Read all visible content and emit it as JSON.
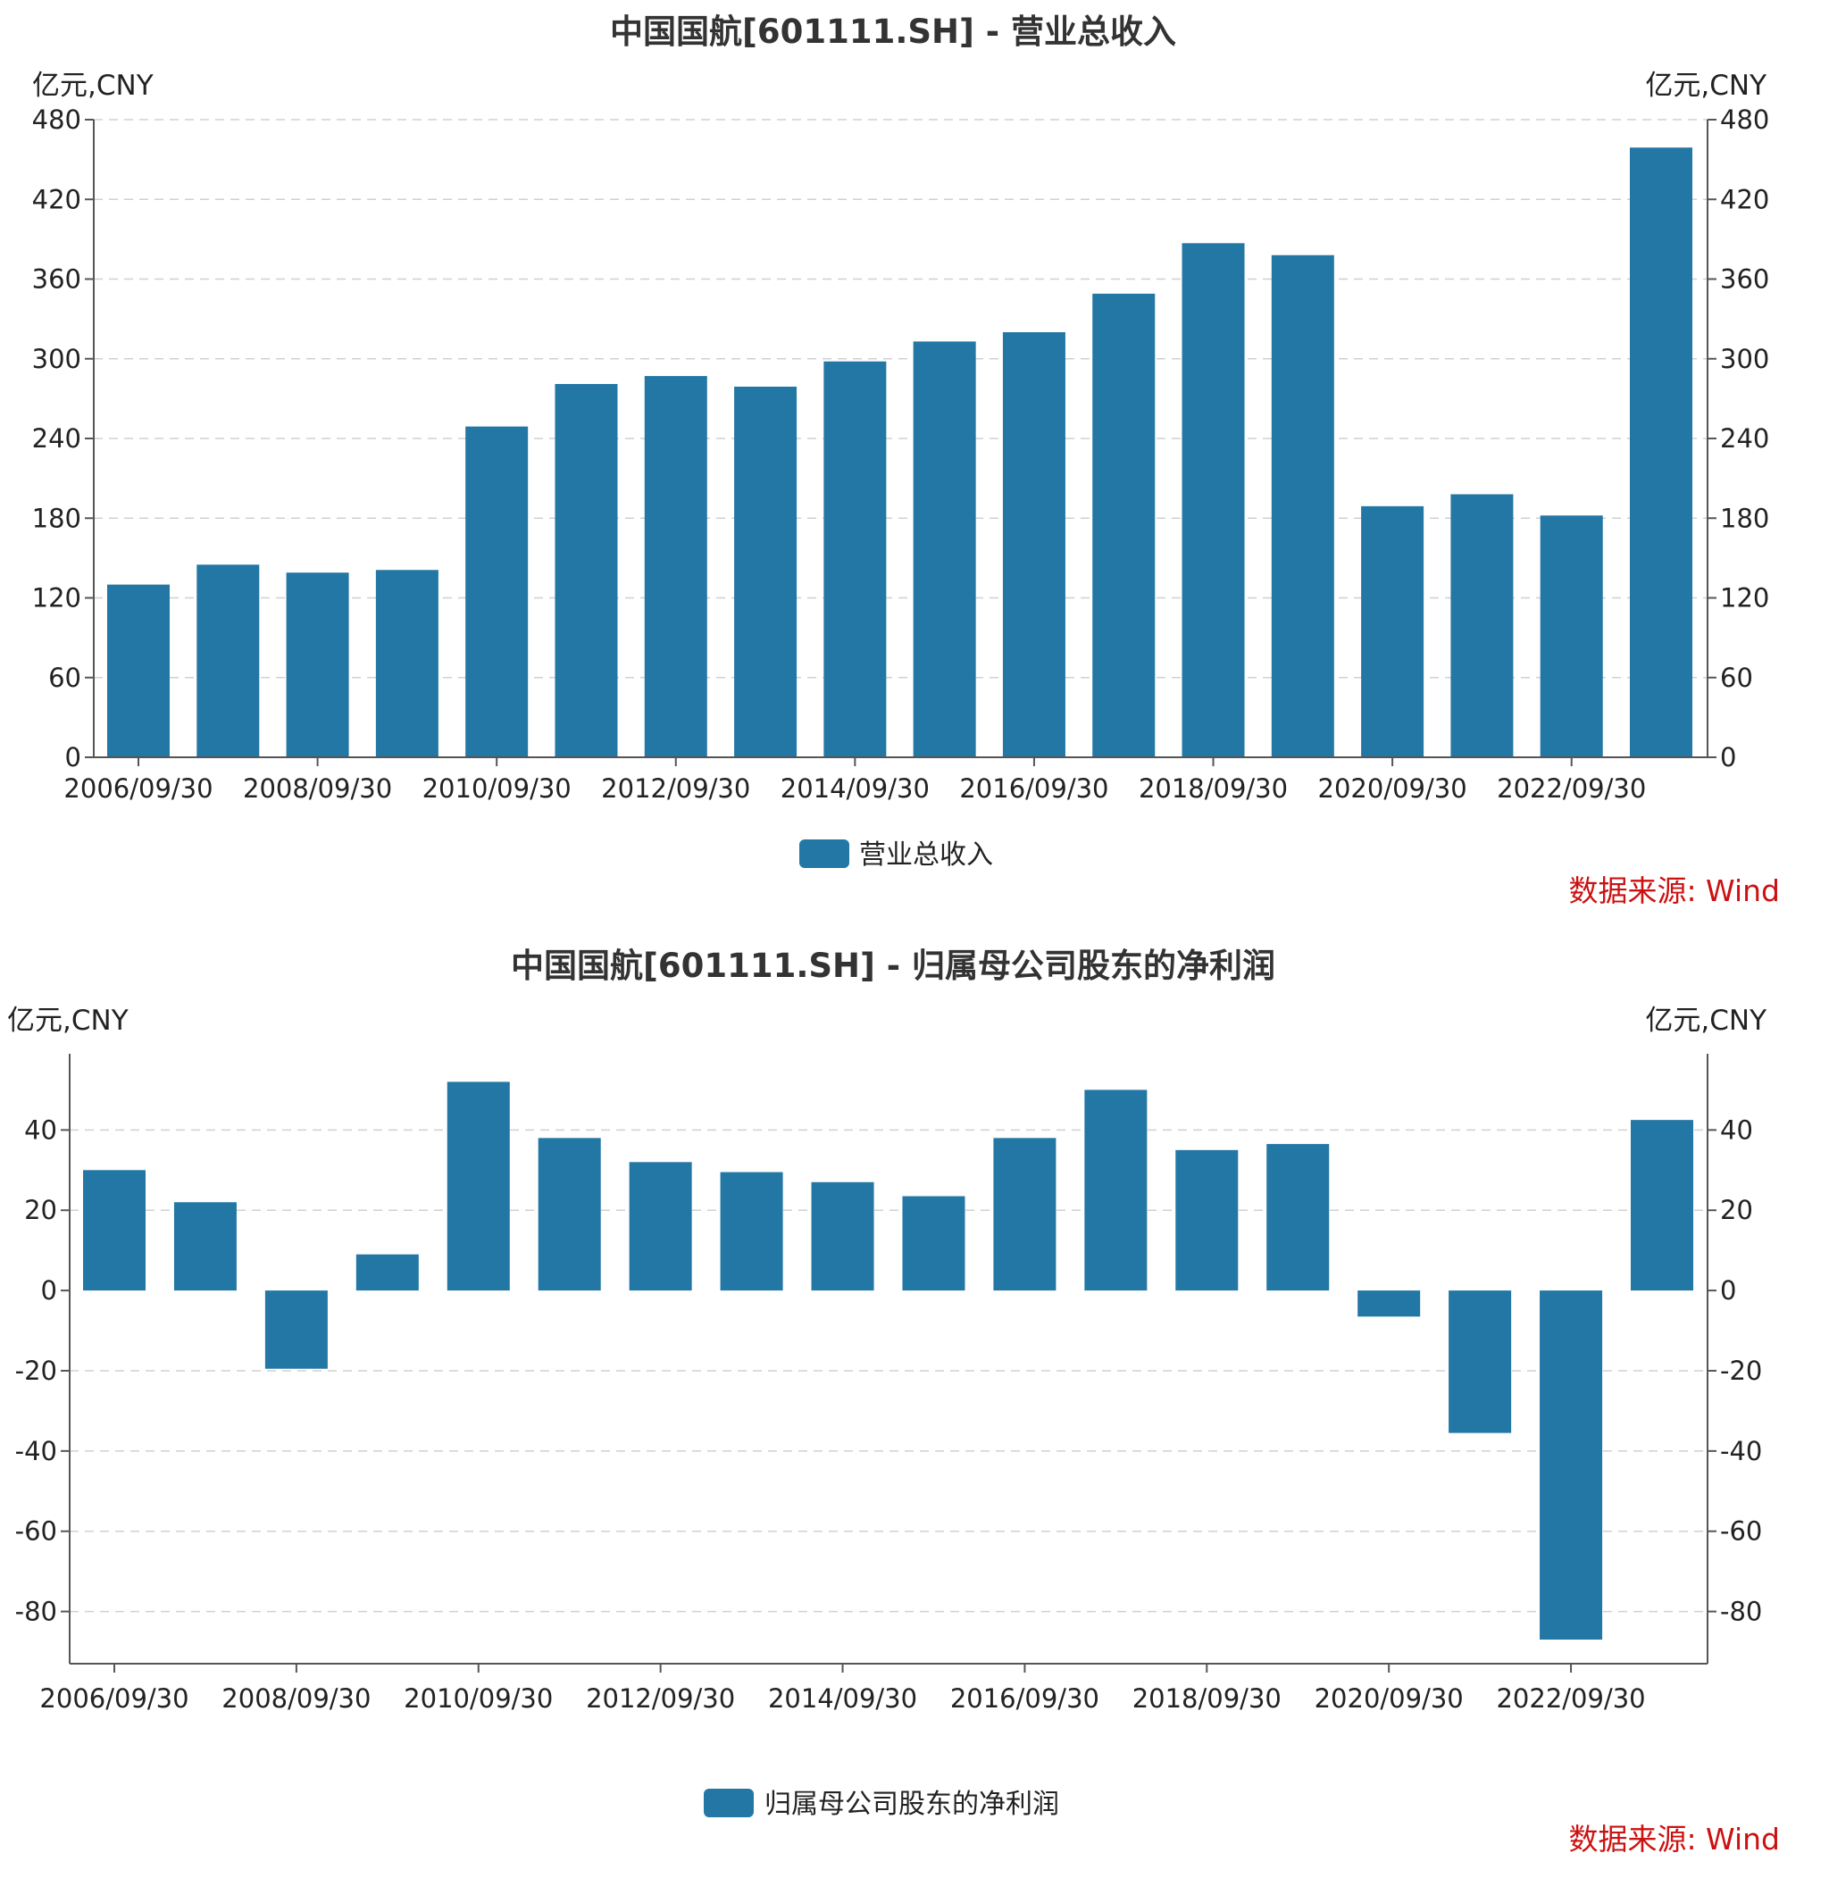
{
  "colors": {
    "bar": "#2377a4",
    "axis": "#555555",
    "grid": "#d0d0d0",
    "source": "#cc1111",
    "title": "#333333"
  },
  "chart_data": [
    {
      "type": "bar",
      "title": "中国国航[601111.SH] - 营业总收入",
      "unit_left": "亿元,CNY",
      "unit_right": "亿元,CNY",
      "legend": "营业总收入",
      "source": "数据来源: Wind",
      "ylim": [
        0,
        480
      ],
      "yticks": [
        0,
        60,
        120,
        180,
        240,
        300,
        360,
        420,
        480
      ],
      "grid": true,
      "categories": [
        "2006/09/30",
        "2007/09/30",
        "2008/09/30",
        "2009/09/30",
        "2010/09/30",
        "2011/09/30",
        "2012/09/30",
        "2013/09/30",
        "2014/09/30",
        "2015/09/30",
        "2016/09/30",
        "2017/09/30",
        "2018/09/30",
        "2019/09/30",
        "2020/09/30",
        "2021/09/30",
        "2022/09/30",
        "2023/09/30"
      ],
      "tick_labels": [
        "2006/09/30",
        "",
        "2008/09/30",
        "",
        "2010/09/30",
        "",
        "2012/09/30",
        "",
        "2014/09/30",
        "",
        "2016/09/30",
        "",
        "2018/09/30",
        "",
        "2020/09/30",
        "",
        "2022/09/30",
        ""
      ],
      "series": [
        {
          "name": "营业总收入",
          "values": [
            130,
            145,
            139,
            141,
            249,
            281,
            287,
            279,
            298,
            313,
            320,
            349,
            387,
            378,
            189,
            198,
            182,
            459
          ]
        }
      ]
    },
    {
      "type": "bar",
      "title": "中国国航[601111.SH] - 归属母公司股东的净利润",
      "unit_left": "亿元,CNY",
      "unit_right": "亿元,CNY",
      "legend": "归属母公司股东的净利润",
      "source": "数据来源: Wind",
      "ylim": [
        -93,
        59
      ],
      "yticks": [
        -80,
        -60,
        -40,
        -20,
        0,
        20,
        40
      ],
      "grid": true,
      "categories": [
        "2006/09/30",
        "2007/09/30",
        "2008/09/30",
        "2009/09/30",
        "2010/09/30",
        "2011/09/30",
        "2012/09/30",
        "2013/09/30",
        "2014/09/30",
        "2015/09/30",
        "2016/09/30",
        "2017/09/30",
        "2018/09/30",
        "2019/09/30",
        "2020/09/30",
        "2021/09/30",
        "2022/09/30",
        "2023/09/30"
      ],
      "tick_labels": [
        "2006/09/30",
        "",
        "2008/09/30",
        "",
        "2010/09/30",
        "",
        "2012/09/30",
        "",
        "2014/09/30",
        "",
        "2016/09/30",
        "",
        "2018/09/30",
        "",
        "2020/09/30",
        "",
        "2022/09/30",
        ""
      ],
      "series": [
        {
          "name": "归属母公司股东的净利润",
          "values": [
            30,
            22,
            -19.5,
            9,
            52,
            38,
            32,
            29.5,
            27,
            23.5,
            38,
            50,
            35,
            36.5,
            -6.5,
            -35.5,
            -87,
            42.5
          ]
        }
      ]
    }
  ]
}
